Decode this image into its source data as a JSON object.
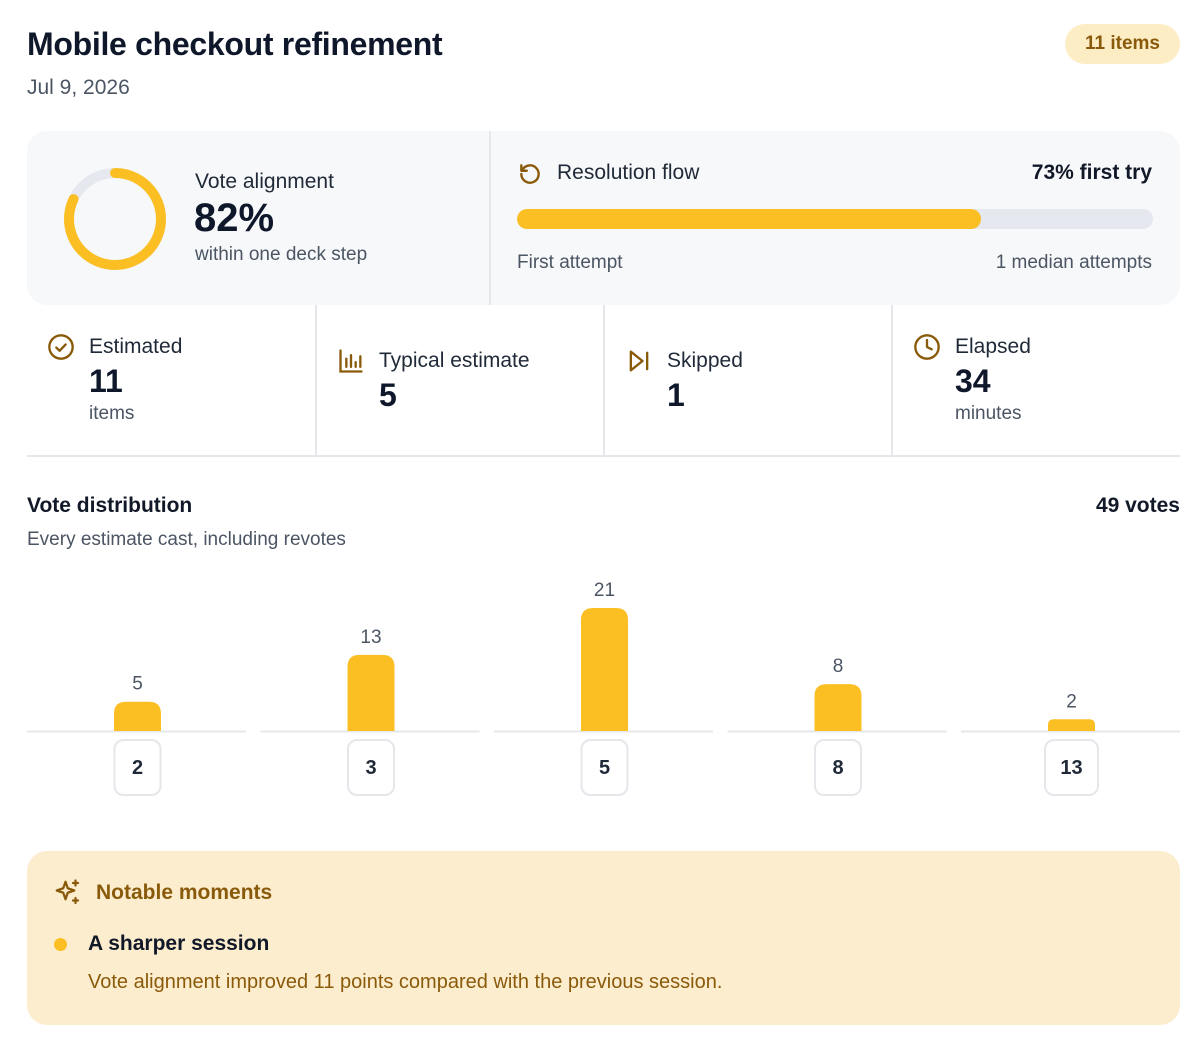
{
  "header": {
    "title": "Mobile checkout refinement",
    "date": "Jul 9, 2026",
    "badge": "11 items"
  },
  "alignment": {
    "label": "Vote alignment",
    "value": "82%",
    "percent": 82,
    "subtitle": "within one deck step"
  },
  "resolution": {
    "icon": "refresh-icon",
    "label": "Resolution flow",
    "summary": "73% first try",
    "percent": 73,
    "foot_left": "First attempt",
    "foot_right": "1 median attempts"
  },
  "stats": [
    {
      "icon": "check-circle-icon",
      "label": "Estimated",
      "value": "11",
      "unit": "items"
    },
    {
      "icon": "bar-chart-icon",
      "label": "Typical estimate",
      "value": "5",
      "unit": ""
    },
    {
      "icon": "skip-forward-icon",
      "label": "Skipped",
      "value": "1",
      "unit": ""
    },
    {
      "icon": "clock-icon",
      "label": "Elapsed",
      "value": "34",
      "unit": "minutes"
    }
  ],
  "distribution": {
    "title": "Vote distribution",
    "subtitle": "Every estimate cast, including revotes",
    "total": "49 votes"
  },
  "chart_data": {
    "type": "bar",
    "categories": [
      "2",
      "3",
      "5",
      "8",
      "13"
    ],
    "values": [
      5,
      13,
      21,
      8,
      2
    ],
    "title": "",
    "xlabel": "",
    "ylabel": "",
    "ylim": [
      0,
      21
    ],
    "grid": false,
    "legend": "none",
    "color": "#fbbf24"
  },
  "moments": {
    "icon": "sparkles-icon",
    "title": "Notable moments",
    "items": [
      {
        "title": "A sharper session",
        "body": "Vote alignment improved 11 points compared with the previous session."
      }
    ]
  },
  "colors": {
    "accent": "#fbbf24",
    "accent_text": "#8a5a0b",
    "badge_bg": "#fdedc5",
    "panel_bg": "#f7f8fa"
  }
}
